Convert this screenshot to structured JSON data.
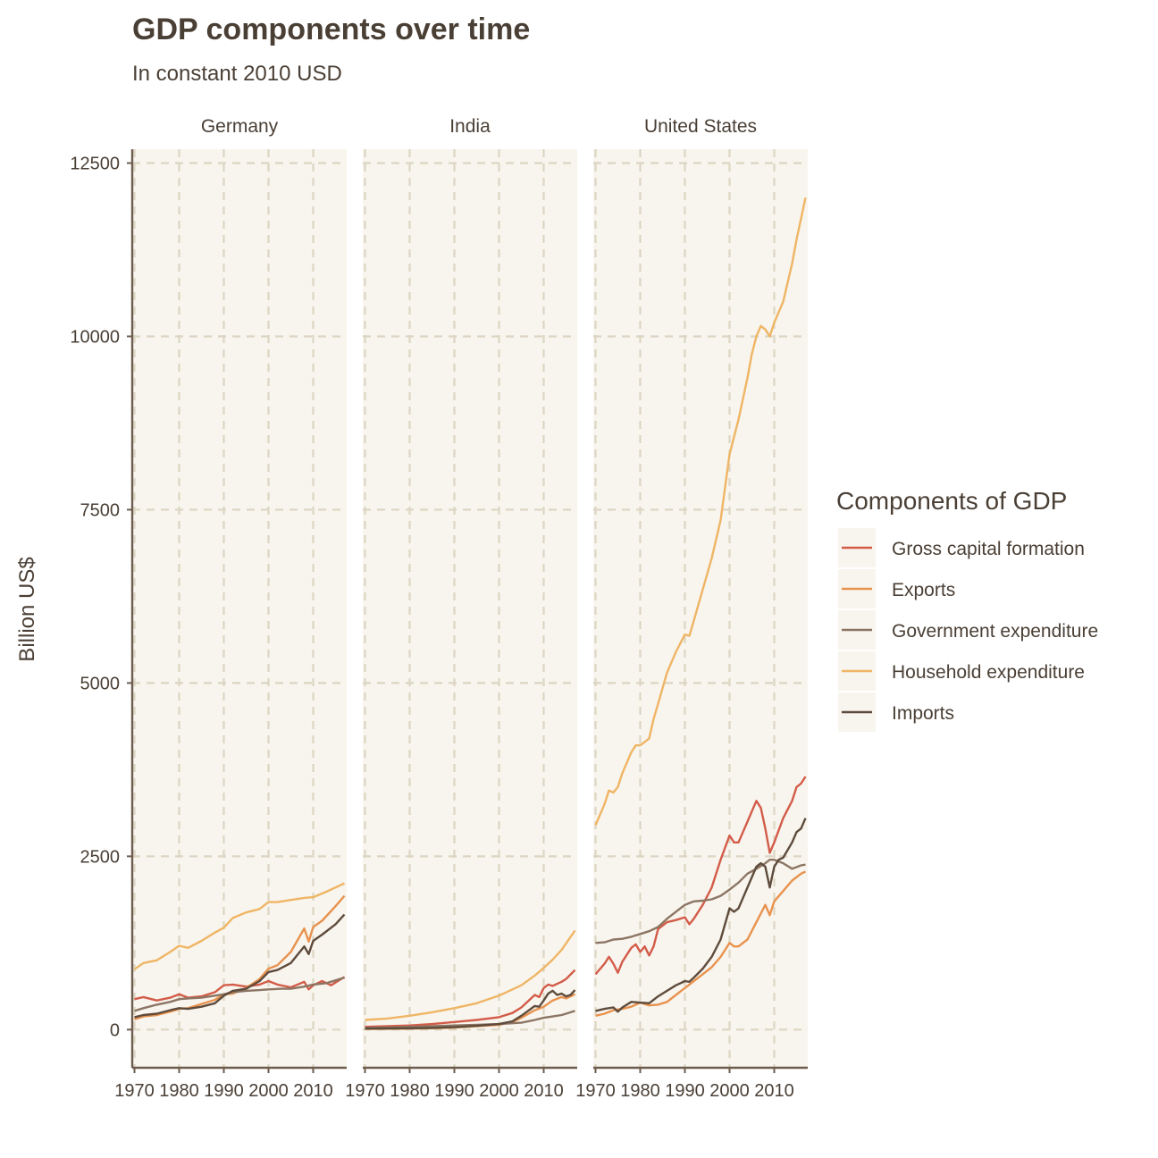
{
  "chart_data": {
    "type": "line",
    "title": "GDP components over time",
    "subtitle": "In constant 2010 USD",
    "ylabel": "Billion US$",
    "xlabel": "",
    "ylim": [
      -550,
      12700
    ],
    "xlim": [
      1969.5,
      2017.5
    ],
    "yticks": [
      0,
      2500,
      5000,
      7500,
      10000,
      12500
    ],
    "xticks": [
      1970,
      1980,
      1990,
      2000,
      2010
    ],
    "grid": true,
    "legend": {
      "title": "Components of GDP",
      "placement": "right",
      "entries": [
        "Gross capital formation",
        "Exports",
        "Government expenditure",
        "Household expenditure",
        "Imports"
      ]
    },
    "series_colors": {
      "Gross capital formation": "#d35c49",
      "Exports": "#e8924e",
      "Government expenditure": "#8c7563",
      "Household expenditure": "#efb565",
      "Imports": "#5e4b3c"
    },
    "panels": [
      {
        "label": "Germany",
        "series": [
          {
            "name": "Household expenditure",
            "x": [
              1970,
              1972,
              1975,
              1978,
              1980,
              1982,
              1985,
              1988,
              1990,
              1992,
              1995,
              1998,
              2000,
              2002,
              2005,
              2008,
              2010,
              2013,
              2017
            ],
            "y": [
              870,
              960,
              1000,
              1120,
              1210,
              1180,
              1280,
              1400,
              1470,
              1610,
              1690,
              1740,
              1840,
              1840,
              1870,
              1900,
              1910,
              1990,
              2110
            ]
          },
          {
            "name": "Gross capital formation",
            "x": [
              1970,
              1972,
              1975,
              1978,
              1980,
              1982,
              1985,
              1988,
              1990,
              1992,
              1995,
              1998,
              2000,
              2002,
              2005,
              2008,
              2009,
              2010,
              2012,
              2014,
              2017
            ],
            "y": [
              440,
              470,
              420,
              460,
              510,
              460,
              480,
              540,
              640,
              650,
              620,
              650,
              700,
              650,
              610,
              690,
              580,
              640,
              700,
              640,
              760
            ]
          },
          {
            "name": "Exports",
            "x": [
              1970,
              1972,
              1975,
              1978,
              1980,
              1982,
              1985,
              1988,
              1990,
              1992,
              1995,
              1998,
              2000,
              2002,
              2005,
              2008,
              2009,
              2010,
              2012,
              2015,
              2017
            ],
            "y": [
              150,
              190,
              210,
              260,
              300,
              310,
              370,
              430,
              510,
              520,
              600,
              730,
              880,
              930,
              1120,
              1460,
              1270,
              1480,
              1570,
              1780,
              1930
            ]
          },
          {
            "name": "Government expenditure",
            "x": [
              1970,
              1972,
              1975,
              1978,
              1980,
              1982,
              1985,
              1988,
              1990,
              1992,
              1995,
              1998,
              2000,
              2003,
              2005,
              2008,
              2010,
              2013,
              2017
            ],
            "y": [
              270,
              310,
              360,
              400,
              440,
              450,
              460,
              490,
              510,
              540,
              560,
              570,
              580,
              590,
              590,
              620,
              650,
              670,
              750
            ]
          },
          {
            "name": "Imports",
            "x": [
              1970,
              1972,
              1975,
              1978,
              1980,
              1982,
              1985,
              1988,
              1990,
              1992,
              1995,
              1998,
              2000,
              2002,
              2005,
              2008,
              2009,
              2010,
              2012,
              2015,
              2017
            ],
            "y": [
              180,
              210,
              230,
              280,
              310,
              300,
              330,
              380,
              490,
              560,
              590,
              700,
              830,
              860,
              960,
              1200,
              1090,
              1280,
              1370,
              1520,
              1660
            ]
          }
        ]
      },
      {
        "label": "India",
        "series": [
          {
            "name": "Household expenditure",
            "x": [
              1970,
              1975,
              1980,
              1985,
              1990,
              1995,
              2000,
              2005,
              2008,
              2010,
              2012,
              2014,
              2017
            ],
            "y": [
              140,
              160,
              200,
              250,
              310,
              380,
              490,
              640,
              780,
              890,
              1010,
              1150,
              1430
            ]
          },
          {
            "name": "Gross capital formation",
            "x": [
              1970,
              1975,
              1980,
              1985,
              1990,
              1995,
              2000,
              2003,
              2005,
              2008,
              2009,
              2010,
              2011,
              2012,
              2014,
              2015,
              2017
            ],
            "y": [
              40,
              50,
              60,
              80,
              110,
              140,
              180,
              240,
              320,
              500,
              470,
              600,
              650,
              630,
              690,
              730,
              860
            ]
          },
          {
            "name": "Exports",
            "x": [
              1970,
              1975,
              1980,
              1985,
              1990,
              1995,
              2000,
              2003,
              2005,
              2008,
              2010,
              2012,
              2014,
              2015,
              2017
            ],
            "y": [
              10,
              12,
              15,
              20,
              30,
              50,
              70,
              110,
              170,
              280,
              330,
              420,
              470,
              450,
              510
            ]
          },
          {
            "name": "Government expenditure",
            "x": [
              1970,
              1975,
              1980,
              1985,
              1990,
              1995,
              2000,
              2005,
              2008,
              2010,
              2012,
              2014,
              2017
            ],
            "y": [
              25,
              30,
              40,
              50,
              60,
              70,
              80,
              100,
              140,
              170,
              190,
              210,
              270
            ]
          },
          {
            "name": "Imports",
            "x": [
              1970,
              1975,
              1980,
              1985,
              1990,
              1995,
              2000,
              2003,
              2005,
              2008,
              2009,
              2010,
              2011,
              2012,
              2013,
              2014,
              2015,
              2016,
              2017
            ],
            "y": [
              15,
              17,
              20,
              25,
              35,
              55,
              80,
              120,
              200,
              340,
              330,
              420,
              520,
              560,
              500,
              520,
              480,
              500,
              570
            ]
          }
        ]
      },
      {
        "label": "United States",
        "series": [
          {
            "name": "Household expenditure",
            "x": [
              1970,
              1972,
              1973,
              1974,
              1975,
              1976,
              1978,
              1979,
              1980,
              1981,
              1982,
              1983,
              1984,
              1986,
              1988,
              1990,
              1991,
              1992,
              1994,
              1996,
              1998,
              2000,
              2002,
              2004,
              2005,
              2006,
              2007,
              2008,
              2009,
              2010,
              2012,
              2014,
              2015,
              2016,
              2017
            ],
            "y": [
              2950,
              3250,
              3450,
              3420,
              3500,
              3700,
              4000,
              4100,
              4100,
              4150,
              4200,
              4480,
              4700,
              5150,
              5450,
              5700,
              5680,
              5900,
              6350,
              6800,
              7350,
              8300,
              8800,
              9400,
              9750,
              10000,
              10150,
              10100,
              10000,
              10200,
              10500,
              11050,
              11400,
              11700,
              12000
            ]
          },
          {
            "name": "Gross capital formation",
            "x": [
              1970,
              1972,
              1973,
              1974,
              1975,
              1976,
              1978,
              1979,
              1980,
              1981,
              1982,
              1983,
              1984,
              1986,
              1988,
              1990,
              1991,
              1992,
              1994,
              1996,
              1998,
              2000,
              2001,
              2002,
              2004,
              2005,
              2006,
              2007,
              2008,
              2009,
              2010,
              2012,
              2014,
              2015,
              2016,
              2017
            ],
            "y": [
              800,
              950,
              1050,
              950,
              820,
              980,
              1180,
              1230,
              1120,
              1200,
              1070,
              1200,
              1450,
              1550,
              1580,
              1620,
              1520,
              1600,
              1800,
              2050,
              2450,
              2800,
              2700,
              2700,
              3000,
              3150,
              3300,
              3200,
              2900,
              2550,
              2700,
              3050,
              3300,
              3500,
              3550,
              3650
            ]
          },
          {
            "name": "Exports",
            "x": [
              1970,
              1972,
              1974,
              1976,
              1978,
              1980,
              1982,
              1984,
              1986,
              1988,
              1990,
              1992,
              1994,
              1996,
              1998,
              2000,
              2001,
              2002,
              2004,
              2006,
              2008,
              2009,
              2010,
              2012,
              2014,
              2016,
              2017
            ],
            "y": [
              200,
              230,
              280,
              300,
              330,
              390,
              350,
              360,
              400,
              500,
              600,
              700,
              800,
              900,
              1050,
              1250,
              1200,
              1200,
              1300,
              1550,
              1800,
              1650,
              1850,
              2000,
              2150,
              2250,
              2280
            ]
          },
          {
            "name": "Government expenditure",
            "x": [
              1970,
              1972,
              1974,
              1976,
              1978,
              1980,
              1982,
              1984,
              1986,
              1988,
              1990,
              1992,
              1994,
              1996,
              1998,
              2000,
              2002,
              2004,
              2006,
              2008,
              2009,
              2010,
              2012,
              2014,
              2016,
              2017
            ],
            "y": [
              1250,
              1260,
              1300,
              1310,
              1340,
              1380,
              1420,
              1480,
              1600,
              1700,
              1800,
              1850,
              1860,
              1880,
              1930,
              2020,
              2120,
              2250,
              2320,
              2400,
              2450,
              2450,
              2400,
              2320,
              2370,
              2380
            ]
          },
          {
            "name": "Imports",
            "x": [
              1970,
              1972,
              1974,
              1975,
              1976,
              1978,
              1980,
              1982,
              1984,
              1986,
              1988,
              1990,
              1991,
              1992,
              1994,
              1996,
              1998,
              2000,
              2001,
              2002,
              2004,
              2005,
              2006,
              2007,
              2008,
              2009,
              2010,
              2011,
              2012,
              2014,
              2015,
              2016,
              2017
            ],
            "y": [
              270,
              300,
              320,
              260,
              320,
              400,
              390,
              380,
              480,
              560,
              640,
              700,
              690,
              750,
              880,
              1050,
              1300,
              1750,
              1700,
              1750,
              2050,
              2200,
              2350,
              2400,
              2350,
              2050,
              2350,
              2450,
              2480,
              2700,
              2850,
              2900,
              3050
            ]
          }
        ]
      }
    ]
  }
}
